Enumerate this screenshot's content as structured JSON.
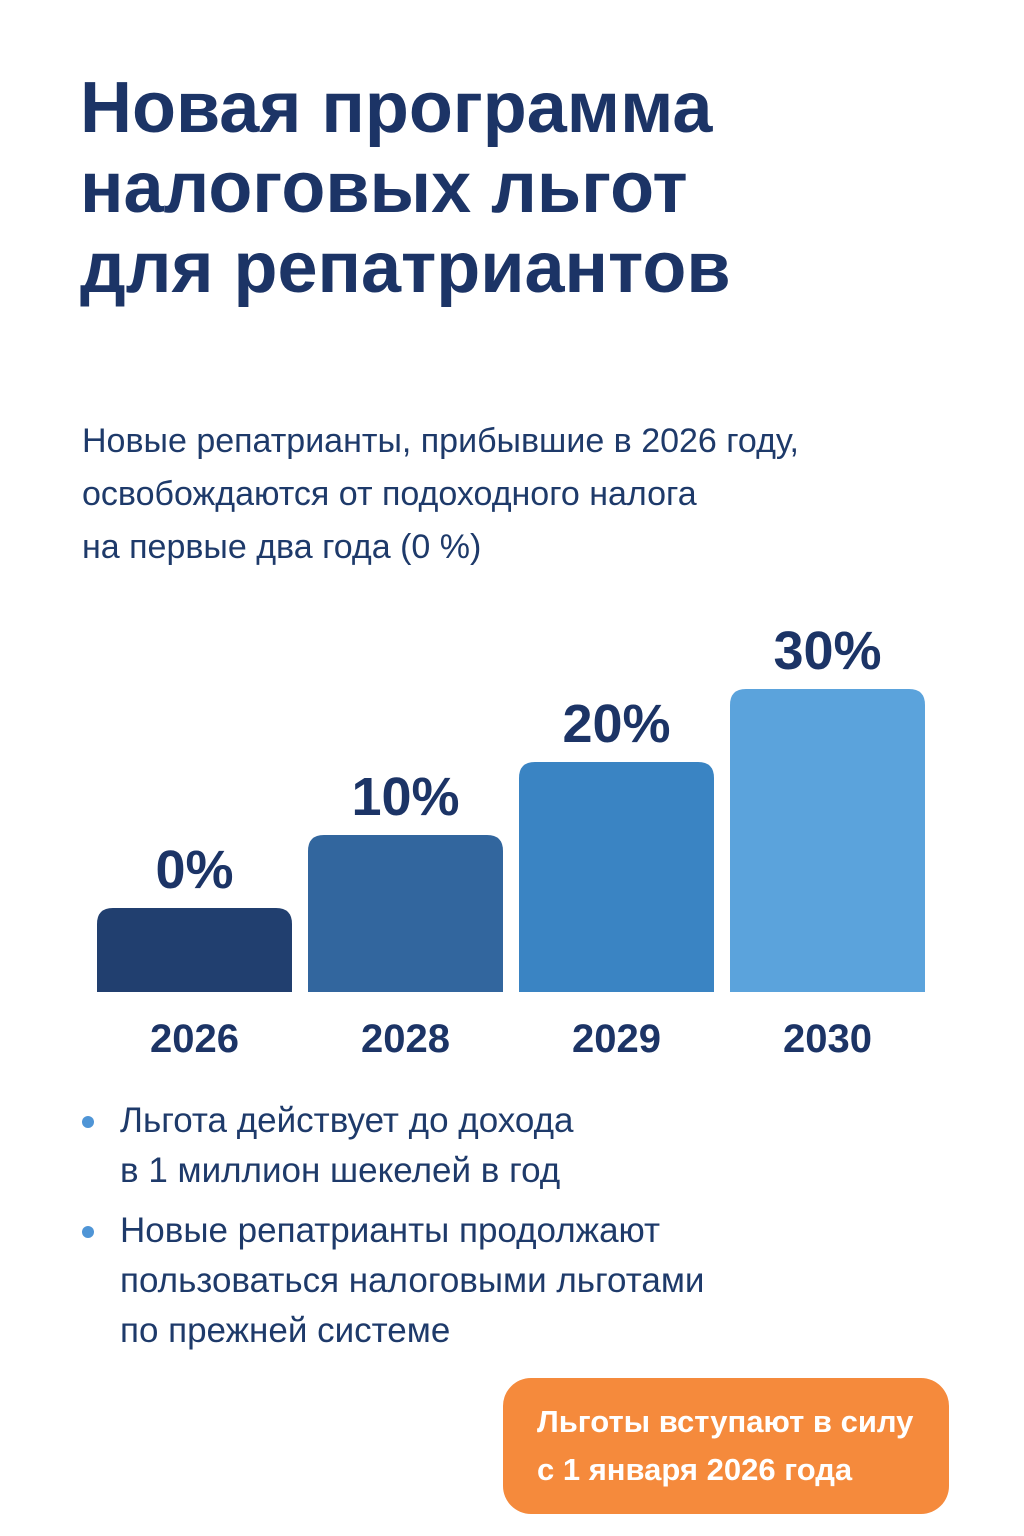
{
  "title": {
    "lines": [
      "Новая программа",
      "налоговых льгот",
      "для репатриантов"
    ]
  },
  "subtitle": {
    "lines": [
      "Новые репатрианты, прибывшие в 2026 году,",
      "освобождаются от подоходного налога",
      "на первые два года (0 %)"
    ]
  },
  "colors": {
    "title": "#1c3466",
    "text": "#1e3a6a",
    "bullet": "#4f95d6",
    "badge": "#f58a3c"
  },
  "chart_data": {
    "type": "bar",
    "categories": [
      "2026",
      "2028",
      "2029",
      "2030"
    ],
    "values": [
      0,
      10,
      20,
      30
    ],
    "value_labels": [
      "0%",
      "10%",
      "20%",
      "30%"
    ],
    "bar_colors": [
      "#213f6f",
      "#32669e",
      "#3a84c3",
      "#5ba3dc"
    ],
    "title": "",
    "xlabel": "",
    "ylabel": "",
    "grid": false,
    "legend": "none"
  },
  "bullets": [
    {
      "lines": [
        "Льгота действует до дохода",
        "в 1 миллион шекелей в год"
      ]
    },
    {
      "lines": [
        "Новые репатрианты продолжают",
        "пользоваться налоговыми льготами",
        "по прежней системе"
      ]
    }
  ],
  "badge": {
    "lines": [
      "Льготы вступают в силу",
      "с 1 января 2026 года"
    ]
  }
}
